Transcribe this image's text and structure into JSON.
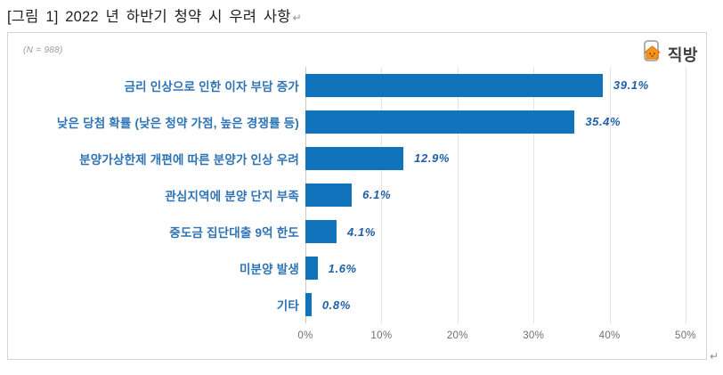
{
  "title": {
    "text": "[그림 1] 2022 년 하반기 청약 시 우려 사항",
    "paragraph_mark": "↵"
  },
  "figure": {
    "sample_size_label": "(N = 988)",
    "logo_text": "직방",
    "trailing_paragraph_mark": "↵"
  },
  "colors": {
    "bar": "#1273BD",
    "category_label": "#2E74B5",
    "value_label": "#1F5FA8",
    "logo_orange": "#F7941D"
  },
  "chart_data": {
    "type": "bar",
    "orientation": "horizontal",
    "title": "2022 년 하반기 청약 시 우려 사항",
    "sample_size": 988,
    "categories": [
      "금리 인상으로 인한 이자 부담 증가",
      "낮은 당첨 확률 (낮은 청약 가점, 높은 경쟁률 등)",
      "분양가상한제 개편에 따른 분양가 인상 우려",
      "관심지역에 분양 단지 부족",
      "중도금 집단대출 9억 한도",
      "미분양 발생",
      "기타"
    ],
    "values": [
      39.1,
      35.4,
      12.9,
      6.1,
      4.1,
      1.6,
      0.8
    ],
    "value_labels": [
      "39.1%",
      "35.4%",
      "12.9%",
      "6.1%",
      "4.1%",
      "1.6%",
      "0.8%"
    ],
    "xlabel": "",
    "ylabel": "",
    "xlim": [
      0,
      50
    ],
    "x_ticks": [
      "0%",
      "10%",
      "20%",
      "30%",
      "40%",
      "50%"
    ],
    "grid": true,
    "legend": false,
    "bar_color": "#1273BD"
  }
}
